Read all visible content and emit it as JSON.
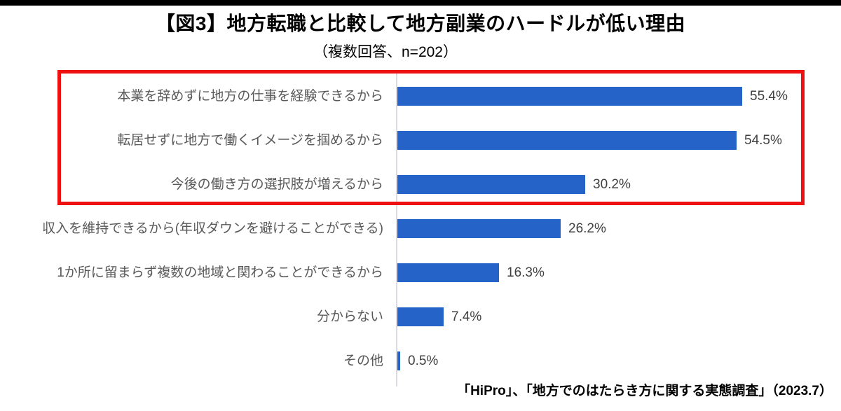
{
  "page": {
    "background_color": "#ffffff",
    "top_bar_color": "#000000"
  },
  "header": {
    "title": "【図3】地方転職と比較して地方副業のハードルが低い理由",
    "subtitle": "（複数回答、n=202）"
  },
  "chart_data": {
    "type": "bar",
    "orientation": "horizontal",
    "title": "【図3】地方転職と比較して地方副業のハードルが低い理由",
    "subtitle": "（複数回答、n=202）",
    "n": 202,
    "categories": [
      "本業を辞めずに地方の仕事を経験できるから",
      "転居せずに地方で働くイメージを掴めるから",
      "今後の働き方の選択肢が増えるから",
      "収入を維持できるから(年収ダウンを避けることができる)",
      "1か所に留まらず複数の地域と関わることができるから",
      "分からない",
      "その他"
    ],
    "values": [
      55.4,
      54.5,
      30.2,
      26.2,
      16.3,
      7.4,
      0.5
    ],
    "value_labels": [
      "55.4%",
      "54.5%",
      "30.2%",
      "26.2%",
      "16.3%",
      "7.4%",
      "0.5%"
    ],
    "unit": "%",
    "xlim": [
      0,
      60
    ],
    "grid": false,
    "legend": false,
    "bar_color": "#2563c8",
    "axis_line_color": "#d9dce4",
    "category_label_color": "#595959",
    "value_label_color": "#404040",
    "highlight": {
      "rows": [
        0,
        1,
        2
      ],
      "box_color": "#ee1111"
    }
  },
  "footer": {
    "source": "「HiPro」、「地方でのはたらき方に関する実態調査」（2023.7）"
  }
}
